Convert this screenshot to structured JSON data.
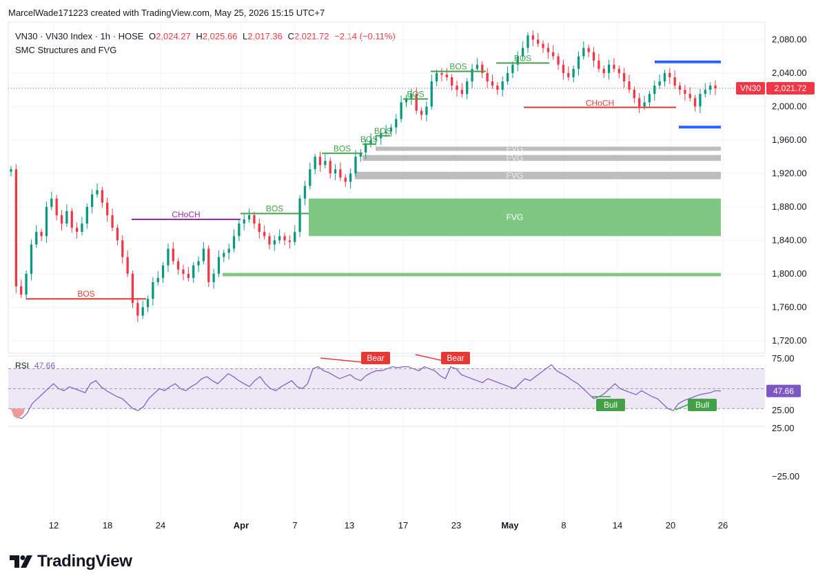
{
  "header": {
    "attribution": "MarcelWade171223 created with TradingView.com, May 25, 2026 15:15 UTC+7"
  },
  "legend": {
    "symbol": "VN30 · VN30 Index · 1h · HOSE",
    "o_label": "O",
    "o_value": "2,024.27",
    "h_label": "H",
    "h_value": "2,025.66",
    "l_label": "L",
    "l_value": "2,017.36",
    "c_label": "C",
    "c_value": "2,021.72",
    "change": "−2.14 (−0.11%)",
    "indicator": "SMC Structures and FVG"
  },
  "price_badge": {
    "ticker": "VN30",
    "value": "2,021.72"
  },
  "rsi_legend": {
    "label": "RSI",
    "value": "47.66"
  },
  "logo": {
    "text": "TradingView"
  },
  "colors": {
    "up": "#089981",
    "down": "#f23645",
    "bull": "#43a047",
    "bear": "#e53935",
    "choch_purple": "#9c27b0",
    "fvg_green": "#81c784",
    "fvg_gray": "#bdbdbd",
    "ob_blue": "#2962ff",
    "rsi_line": "#7e57c2",
    "rsi_fill": "#ede7f6"
  },
  "chart_data": [
    {
      "type": "candlestick",
      "title": "VN30 · VN30 Index · 1h · HOSE",
      "x_ticks": [
        "12",
        "18",
        "24",
        "Apr",
        "7",
        "13",
        "17",
        "23",
        "May",
        "8",
        "14",
        "20",
        "26"
      ],
      "y_ticks": [
        "1,720.00",
        "1,760.00",
        "1,800.00",
        "1,840.00",
        "1,880.00",
        "1,920.00",
        "1,960.00",
        "2,000.00",
        "2,040.00",
        "2,080.00"
      ],
      "ylim": [
        1705,
        2096
      ],
      "last_close": 2021.72,
      "close_path": [
        1925,
        1785,
        1775,
        1800,
        1835,
        1850,
        1845,
        1880,
        1890,
        1870,
        1860,
        1875,
        1855,
        1850,
        1860,
        1880,
        1895,
        1900,
        1885,
        1870,
        1855,
        1840,
        1820,
        1800,
        1765,
        1750,
        1760,
        1770,
        1790,
        1795,
        1810,
        1830,
        1815,
        1805,
        1800,
        1795,
        1810,
        1815,
        1830,
        1790,
        1800,
        1820,
        1825,
        1830,
        1845,
        1860,
        1865,
        1870,
        1860,
        1850,
        1845,
        1835,
        1840,
        1845,
        1840,
        1838,
        1850,
        1890,
        1905,
        1925,
        1940,
        1930,
        1935,
        1920,
        1925,
        1915,
        1910,
        1920,
        1940,
        1945,
        1955,
        1960,
        1962,
        1968,
        1970,
        1975,
        1985,
        2005,
        2010,
        2015,
        1995,
        1990,
        2000,
        2030,
        2040,
        2038,
        2035,
        2025,
        2020,
        2015,
        2030,
        2045,
        2050,
        2040,
        2030,
        2025,
        2020,
        2030,
        2040,
        2050,
        2060,
        2070,
        2085,
        2080,
        2075,
        2070,
        2065,
        2060,
        2050,
        2040,
        2035,
        2045,
        2060,
        2070,
        2065,
        2055,
        2045,
        2040,
        2050,
        2045,
        2040,
        2030,
        2020,
        2010,
        2000,
        2005,
        2015,
        2025,
        2030,
        2040,
        2035,
        2025,
        2020,
        2015,
        2010,
        2000,
        2015,
        2020,
        2025,
        2021.72
      ],
      "annotations": [
        {
          "label": "BOS",
          "kind": "bearish",
          "level": 1770
        },
        {
          "label": "CHoCH",
          "kind": "purple",
          "level": 1865
        },
        {
          "label": "BOS",
          "kind": "bullish",
          "level": 1872
        },
        {
          "label": "BOS",
          "kind": "bullish",
          "level": 1944
        },
        {
          "label": "BOS",
          "kind": "bullish",
          "level": 1955
        },
        {
          "label": "BOS",
          "kind": "bullish",
          "level": 1965
        },
        {
          "label": "BOS",
          "kind": "bullish",
          "level": 2009
        },
        {
          "label": "BOS",
          "kind": "bullish",
          "level": 2042
        },
        {
          "label": "BOS",
          "kind": "bullish",
          "level": 2052
        },
        {
          "label": "CHoCH",
          "kind": "bearish",
          "level": 1999
        }
      ],
      "zones": [
        {
          "label": "FVG",
          "kind": "bullish",
          "from": 1845,
          "to": 1890
        },
        {
          "label": "FVG",
          "kind": "neutral",
          "from": 1947,
          "to": 1952
        },
        {
          "label": "FVG",
          "kind": "neutral",
          "from": 1935,
          "to": 1942
        },
        {
          "label": "FVG",
          "kind": "neutral",
          "from": 1913,
          "to": 1922
        },
        {
          "label": "",
          "kind": "bullish-line",
          "from": 1797,
          "to": 1801
        },
        {
          "label": "",
          "kind": "ob-top",
          "from": 2052,
          "to": 2055
        },
        {
          "label": "",
          "kind": "ob-bottom",
          "from": 1974,
          "to": 1977
        }
      ]
    },
    {
      "type": "line",
      "title": "RSI",
      "y_ticks": [
        "75.00",
        "25.00",
        "25.00",
        "−25.00"
      ],
      "band": [
        30,
        70
      ],
      "midline": 50,
      "last_value": 47.66,
      "values": [
        30,
        22,
        20,
        25,
        35,
        40,
        45,
        50,
        55,
        50,
        48,
        52,
        50,
        48,
        46,
        55,
        58,
        52,
        48,
        45,
        42,
        40,
        35,
        30,
        28,
        32,
        40,
        45,
        50,
        48,
        52,
        55,
        50,
        48,
        52,
        55,
        60,
        62,
        58,
        55,
        60,
        65,
        62,
        58,
        55,
        52,
        58,
        62,
        55,
        50,
        48,
        52,
        55,
        58,
        52,
        50,
        55,
        70,
        72,
        68,
        66,
        63,
        60,
        62,
        64,
        60,
        58,
        63,
        66,
        68,
        68,
        70,
        72,
        71,
        72,
        72,
        70,
        68,
        72,
        70,
        68,
        63,
        60,
        72,
        70,
        64,
        62,
        60,
        58,
        56,
        60,
        58,
        56,
        54,
        52,
        50,
        55,
        60,
        58,
        62,
        66,
        70,
        74,
        68,
        65,
        62,
        58,
        55,
        50,
        45,
        40,
        42,
        45,
        50,
        55,
        50,
        48,
        46,
        44,
        48,
        45,
        42,
        40,
        35,
        30,
        28,
        35,
        38,
        40,
        42,
        44,
        45,
        46,
        48,
        47.66
      ],
      "annotations": [
        {
          "label": "Bear",
          "kind": "divergence"
        },
        {
          "label": "Bear",
          "kind": "divergence"
        },
        {
          "label": "Bull",
          "kind": "divergence"
        },
        {
          "label": "Bull",
          "kind": "divergence"
        }
      ]
    }
  ]
}
